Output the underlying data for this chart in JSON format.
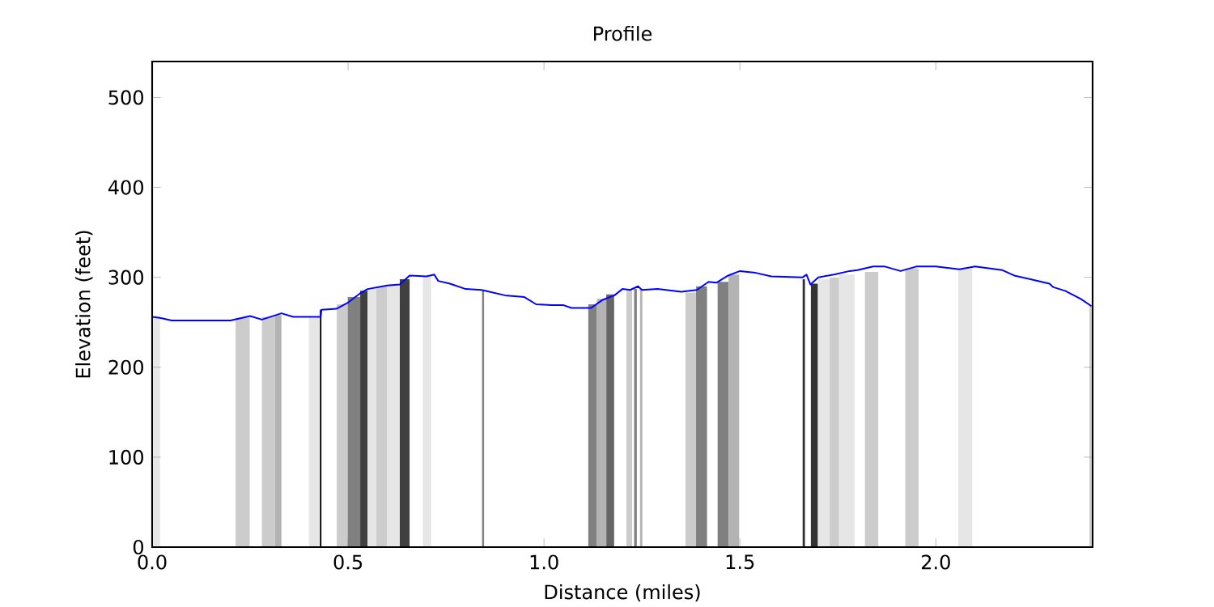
{
  "chart_data": {
    "type": "line",
    "title": "Profile",
    "xlabel": "Distance (miles)",
    "ylabel": "Elevation (feet)",
    "xlim": [
      0,
      2.4
    ],
    "ylim": [
      0,
      540
    ],
    "xticks": [
      {
        "value": 0,
        "label": "0.0"
      },
      {
        "value": 0.5,
        "label": "0.5"
      },
      {
        "value": 1,
        "label": "1.0"
      },
      {
        "value": 1.5,
        "label": "1.5"
      },
      {
        "value": 2,
        "label": "2.0"
      }
    ],
    "yticks": [
      0,
      100,
      200,
      300,
      400,
      500
    ],
    "series": [
      {
        "type": "histogram",
        "bins": [
          0.004,
          0.02,
          0.213,
          0.249,
          0.28,
          0.313,
          0.33,
          0.4,
          0.426,
          0.428,
          0.432,
          0.471,
          0.499,
          0.531,
          0.55,
          0.572,
          0.6,
          0.632,
          0.657,
          0.691,
          0.712,
          0.842,
          0.847,
          1.113,
          1.135,
          1.159,
          1.179,
          1.21,
          1.225,
          1.23,
          1.237,
          1.245,
          1.251,
          1.361,
          1.388,
          1.416,
          1.443,
          1.471,
          1.498,
          1.66,
          1.666,
          1.681,
          1.699,
          1.729,
          1.753,
          1.793,
          1.819,
          1.853,
          1.922,
          1.956,
          2.057,
          2.093,
          2.392,
          2.397
        ],
        "values": [
          257,
          null,
          255,
          null,
          256,
          258,
          null,
          255,
          null,
          264,
          null,
          270,
          278,
          285,
          288,
          290,
          292,
          298,
          null,
          301,
          null,
          285,
          null,
          270,
          276,
          281,
          null,
          285,
          null,
          287,
          null,
          287,
          null,
          283,
          290,
          null,
          295,
          303,
          null,
          298,
          null,
          293,
          298,
          300,
          303,
          null,
          306,
          null,
          310,
          null,
          310,
          null,
          268
        ],
        "colors": [
          "#e6e6e6",
          null,
          "#cccccc",
          null,
          "#cccccc",
          "#b3b3b3",
          null,
          "#e6e6e6",
          null,
          "#000000",
          null,
          "#cccccc",
          "#808080",
          "#404040",
          "#e6e6e6",
          "#cccccc",
          "#e6e6e6",
          "#404040",
          null,
          "#e6e6e6",
          null,
          "#808080",
          null,
          "#808080",
          "#b3b3b3",
          "#666666",
          null,
          "#cccccc",
          null,
          "#808080",
          null,
          "#b3b3b3",
          null,
          "#cccccc",
          "#808080",
          null,
          "#808080",
          "#b3b3b3",
          null,
          "#333333",
          null,
          "#333333",
          "#e6e6e6",
          "#cccccc",
          "#e6e6e6",
          null,
          "#cccccc",
          null,
          "#cccccc",
          null,
          "#e6e6e6",
          null,
          "#cccccc"
        ]
      },
      {
        "color": "#0000ff",
        "x": [
          0,
          0.02,
          0.05,
          0.2,
          0.25,
          0.28,
          0.33,
          0.36,
          0.43,
          0.432,
          0.47,
          0.5,
          0.53,
          0.55,
          0.6,
          0.632,
          0.657,
          0.7,
          0.72,
          0.73,
          0.76,
          0.8,
          0.84,
          0.85,
          0.9,
          0.95,
          0.98,
          1.02,
          1.05,
          1.07,
          1.12,
          1.15,
          1.18,
          1.2,
          1.22,
          1.24,
          1.25,
          1.29,
          1.35,
          1.39,
          1.42,
          1.44,
          1.47,
          1.5,
          1.54,
          1.58,
          1.66,
          1.67,
          1.68,
          1.7,
          1.74,
          1.78,
          1.8,
          1.84,
          1.87,
          1.91,
          1.95,
          2.0,
          2.06,
          2.1,
          2.17,
          2.2,
          2.25,
          2.29,
          2.3,
          2.33,
          2.37,
          2.397
        ],
        "values": [
          256,
          255,
          252,
          252,
          257,
          253,
          260,
          256,
          256,
          264,
          265,
          272,
          282,
          287,
          291,
          292,
          302,
          301,
          303,
          296,
          293,
          287,
          286,
          285,
          280,
          278,
          270,
          269,
          269,
          266,
          266,
          275,
          280,
          287,
          286,
          290,
          286,
          287,
          284,
          286,
          295,
          294,
          302,
          307,
          305,
          301,
          300,
          303,
          292,
          300,
          303,
          307,
          308,
          312,
          312,
          307,
          312,
          312,
          309,
          312,
          308,
          302,
          297,
          293,
          289,
          285,
          276,
          268
        ]
      }
    ]
  }
}
